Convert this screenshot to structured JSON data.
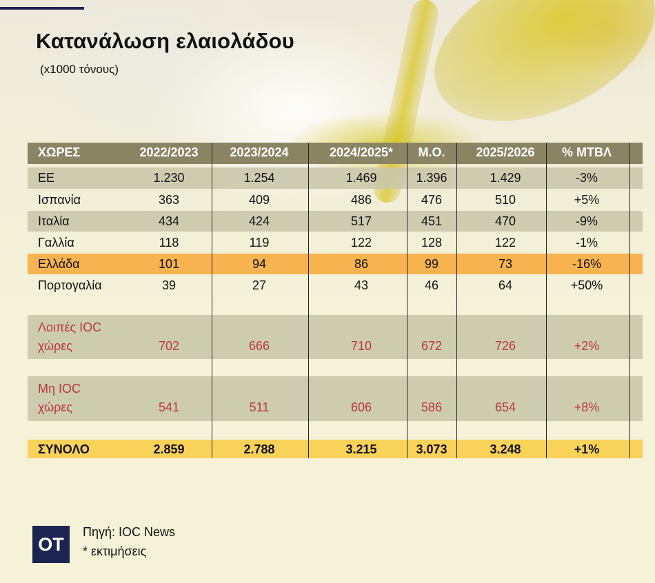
{
  "header": {
    "title": "Κατανάλωση ελαιολάδου",
    "subtitle": "(x1000 τόνους)"
  },
  "colors": {
    "header_bg": "#8b8463",
    "highlight_greece": "#f7b350",
    "total_row": "#f9d25a",
    "ioc_text": "#b8363c",
    "brand": "#1c2450"
  },
  "chart_data": {
    "type": "table",
    "title": "Κατανάλωση ελαιολάδου",
    "unit": "(x1000 τόνους)",
    "columns": [
      "ΧΩΡΕΣ",
      "2022/2023",
      "2023/2024",
      "2024/2025*",
      "Μ.Ο.",
      "2025/2026",
      "% ΜΤΒΛ"
    ],
    "rows": [
      {
        "label": "ΕΕ",
        "values": [
          "1.230",
          "1.254",
          "1.469",
          "1.396",
          "1.429",
          "-3%"
        ]
      },
      {
        "label": "Ισπανία",
        "values": [
          "363",
          "409",
          "486",
          "476",
          "510",
          "+5%"
        ]
      },
      {
        "label": "Ιταλία",
        "values": [
          "434",
          "424",
          "517",
          "451",
          "470",
          "-9%"
        ]
      },
      {
        "label": "Γαλλία",
        "values": [
          "118",
          "119",
          "122",
          "128",
          "122",
          "-1%"
        ]
      },
      {
        "label": "Ελλάδα",
        "values": [
          "101",
          "94",
          "86",
          "99",
          "73",
          "-16%"
        ]
      },
      {
        "label": "Πορτογαλία",
        "values": [
          "39",
          "27",
          "43",
          "46",
          "64",
          "+50%"
        ]
      },
      {
        "label": [
          "Λοιπές IOC",
          "χώρες"
        ],
        "values": [
          "702",
          "666",
          "710",
          "672",
          "726",
          "+2%"
        ]
      },
      {
        "label": [
          "Μη IOC",
          "χώρες"
        ],
        "values": [
          "541",
          "511",
          "606",
          "586",
          "654",
          "+8%"
        ]
      },
      {
        "label": "ΣΥΝΟΛΟ",
        "values": [
          "2.859",
          "2.788",
          "3.215",
          "3.073",
          "3.248",
          "+1%"
        ]
      }
    ]
  },
  "footer": {
    "logo": "OT",
    "source": "Πηγή: IOC News",
    "note": "*  εκτιμήσεις"
  }
}
